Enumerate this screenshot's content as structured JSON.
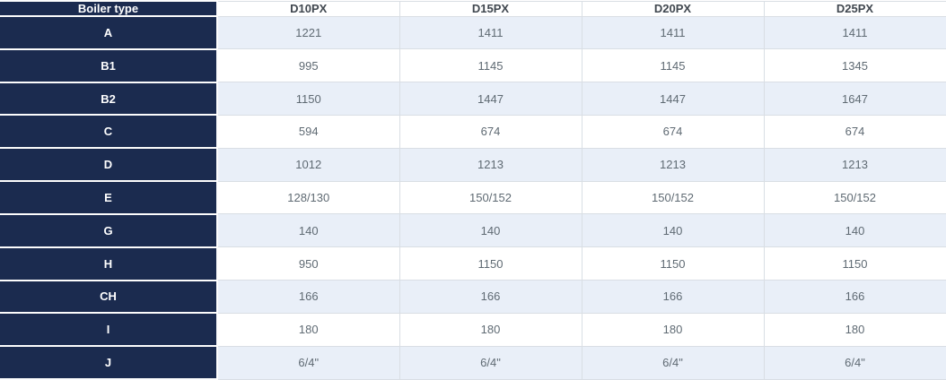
{
  "table": {
    "header": {
      "label": "Boiler type",
      "columns": [
        "D10PX",
        "D15PX",
        "D20PX",
        "D25PX"
      ]
    },
    "rows": [
      {
        "label": "A",
        "values": [
          "1221",
          "1411",
          "1411",
          "1411"
        ]
      },
      {
        "label": "B1",
        "values": [
          "995",
          "1145",
          "1145",
          "1345"
        ]
      },
      {
        "label": "B2",
        "values": [
          "1150",
          "1447",
          "1447",
          "1647"
        ]
      },
      {
        "label": "C",
        "values": [
          "594",
          "674",
          "674",
          "674"
        ]
      },
      {
        "label": "D",
        "values": [
          "1012",
          "1213",
          "1213",
          "1213"
        ]
      },
      {
        "label": "E",
        "values": [
          "128/130",
          "150/152",
          "150/152",
          "150/152"
        ]
      },
      {
        "label": "G",
        "values": [
          "140",
          "140",
          "140",
          "140"
        ]
      },
      {
        "label": "H",
        "values": [
          "950",
          "1150",
          "1150",
          "1150"
        ]
      },
      {
        "label": "CH",
        "values": [
          "166",
          "166",
          "166",
          "166"
        ]
      },
      {
        "label": "I",
        "values": [
          "180",
          "180",
          "180",
          "180"
        ]
      },
      {
        "label": "J",
        "values": [
          "6/4\"",
          "6/4\"",
          "6/4\"",
          "6/4\""
        ]
      }
    ],
    "colors": {
      "label_bg": "#1b2b4f",
      "label_text": "#ffffff",
      "col_header_text": "#40474f",
      "cell_text": "#5f6a73",
      "row_alt_bg": "#e9eff8",
      "row_bg": "#ffffff",
      "border": "#d9dee4",
      "label_separator": "#fdfdfd"
    }
  },
  "chart_data": {
    "type": "table",
    "title": "Boiler type",
    "row_header_label": "Boiler type",
    "columns": [
      "D10PX",
      "D15PX",
      "D20PX",
      "D25PX"
    ],
    "row_labels": [
      "A",
      "B1",
      "B2",
      "C",
      "D",
      "E",
      "G",
      "H",
      "CH",
      "I",
      "J"
    ],
    "series": [
      {
        "name": "D10PX",
        "values": [
          "1221",
          "995",
          "1150",
          "594",
          "1012",
          "128/130",
          "140",
          "950",
          "166",
          "180",
          "6/4\""
        ]
      },
      {
        "name": "D15PX",
        "values": [
          "1411",
          "1145",
          "1447",
          "674",
          "1213",
          "150/152",
          "140",
          "1150",
          "166",
          "180",
          "6/4\""
        ]
      },
      {
        "name": "D20PX",
        "values": [
          "1411",
          "1145",
          "1447",
          "674",
          "1213",
          "150/152",
          "140",
          "1150",
          "166",
          "180",
          "6/4\""
        ]
      },
      {
        "name": "D25PX",
        "values": [
          "1411",
          "1345",
          "1647",
          "674",
          "1213",
          "150/152",
          "140",
          "1150",
          "166",
          "180",
          "6/4\""
        ]
      }
    ]
  }
}
